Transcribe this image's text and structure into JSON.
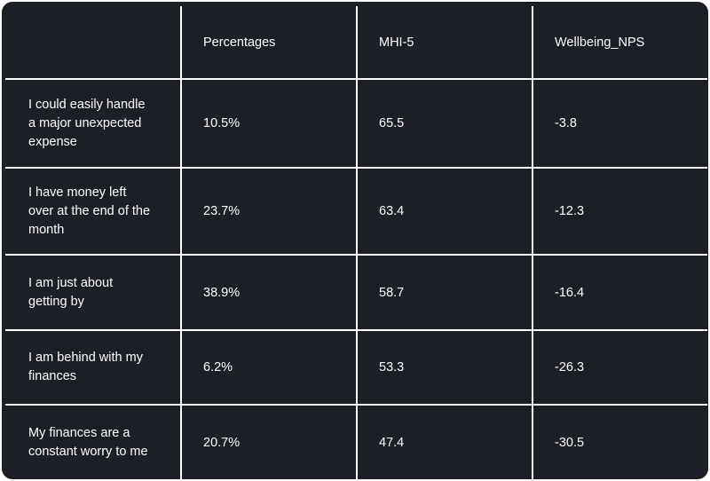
{
  "chart_data": {
    "type": "table",
    "columns": [
      "",
      "Percentages",
      "MHI-5",
      "Wellbeing_NPS"
    ],
    "rows": [
      {
        "label": "I could  easily handle\na major unexpected\nexpense",
        "percentage": "10.5%",
        "mhi5": "65.5",
        "wellbeing_nps": "-3.8"
      },
      {
        "label": "I have  money left\nover at the end of the\nmonth",
        "percentage": "23.7%",
        "mhi5": "63.4",
        "wellbeing_nps": "-12.3"
      },
      {
        "label": "I am just  about\ngetting by",
        "percentage": "38.9%",
        "mhi5": "58.7",
        "wellbeing_nps": "-16.4"
      },
      {
        "label": "I am behind  with my\nfinances",
        "percentage": "6.2%",
        "mhi5": "53.3",
        "wellbeing_nps": "-26.3"
      },
      {
        "label": "My finances  are a\nconstant worry to me",
        "percentage": "20.7%",
        "mhi5": "47.4",
        "wellbeing_nps": "-30.5"
      }
    ]
  },
  "colors": {
    "background": "#1d1f27",
    "grid_lines": "#ffffff",
    "text": "#ffffff"
  }
}
